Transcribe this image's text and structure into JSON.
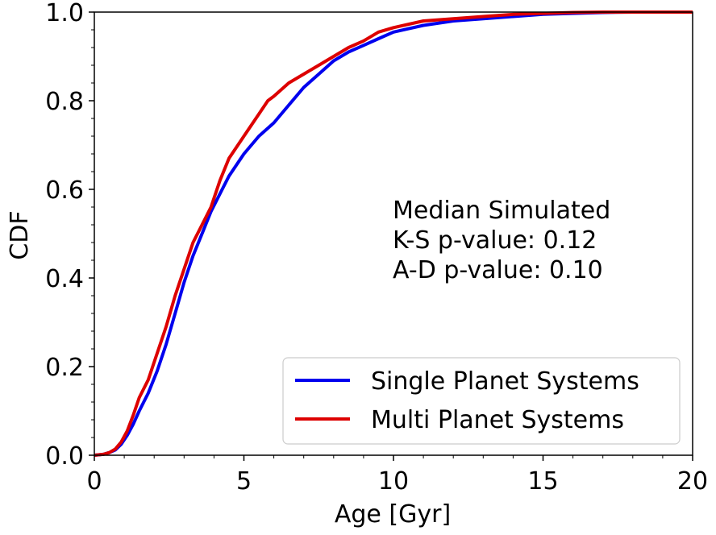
{
  "chart_data": {
    "type": "line",
    "xlabel": "Age [Gyr]",
    "ylabel": "CDF",
    "xlim": [
      0,
      20
    ],
    "ylim": [
      0,
      1.0
    ],
    "xticks": [
      0,
      5,
      10,
      15,
      20
    ],
    "yticks": [
      0.0,
      0.2,
      0.4,
      0.6,
      0.8,
      1.0
    ],
    "grid": false,
    "legend_position": "lower-right",
    "annotation": [
      "Median Simulated",
      "K-S p-value: 0.12",
      "A-D p-value: 0.10"
    ],
    "series": [
      {
        "name": "Single Planet Systems",
        "color": "#0000ee",
        "x": [
          0,
          0.3,
          0.5,
          0.7,
          0.9,
          1.1,
          1.3,
          1.5,
          1.8,
          2.1,
          2.4,
          2.7,
          3.0,
          3.3,
          3.6,
          3.9,
          4.2,
          4.5,
          5.0,
          5.5,
          6.0,
          6.5,
          7.0,
          7.5,
          8.0,
          8.5,
          9.0,
          9.5,
          10.0,
          11.0,
          12.0,
          13.0,
          14.0,
          15.0,
          16.0,
          17.0,
          18.0,
          20.0
        ],
        "y": [
          0.0,
          0.002,
          0.006,
          0.012,
          0.025,
          0.045,
          0.07,
          0.1,
          0.14,
          0.19,
          0.25,
          0.32,
          0.39,
          0.45,
          0.5,
          0.55,
          0.59,
          0.63,
          0.68,
          0.72,
          0.75,
          0.79,
          0.83,
          0.86,
          0.89,
          0.91,
          0.925,
          0.94,
          0.955,
          0.97,
          0.98,
          0.985,
          0.99,
          0.995,
          0.997,
          0.999,
          1.0,
          1.0
        ]
      },
      {
        "name": "Multi Planet Systems",
        "color": "#dd0000",
        "x": [
          0,
          0.3,
          0.5,
          0.7,
          0.9,
          1.1,
          1.3,
          1.5,
          1.8,
          2.1,
          2.4,
          2.7,
          3.0,
          3.3,
          3.6,
          3.9,
          4.2,
          4.5,
          5.0,
          5.5,
          5.8,
          6.0,
          6.5,
          7.0,
          7.5,
          8.0,
          8.5,
          9.0,
          9.5,
          10.0,
          11.0,
          12.0,
          13.0,
          14.0,
          15.0,
          16.0,
          17.0,
          18.0,
          20.0
        ],
        "y": [
          0.0,
          0.002,
          0.006,
          0.014,
          0.03,
          0.055,
          0.09,
          0.13,
          0.17,
          0.23,
          0.29,
          0.36,
          0.42,
          0.48,
          0.52,
          0.56,
          0.62,
          0.67,
          0.72,
          0.77,
          0.8,
          0.81,
          0.84,
          0.86,
          0.88,
          0.9,
          0.92,
          0.935,
          0.955,
          0.965,
          0.98,
          0.985,
          0.99,
          0.995,
          0.997,
          0.999,
          1.0,
          1.0,
          1.0
        ]
      }
    ]
  }
}
